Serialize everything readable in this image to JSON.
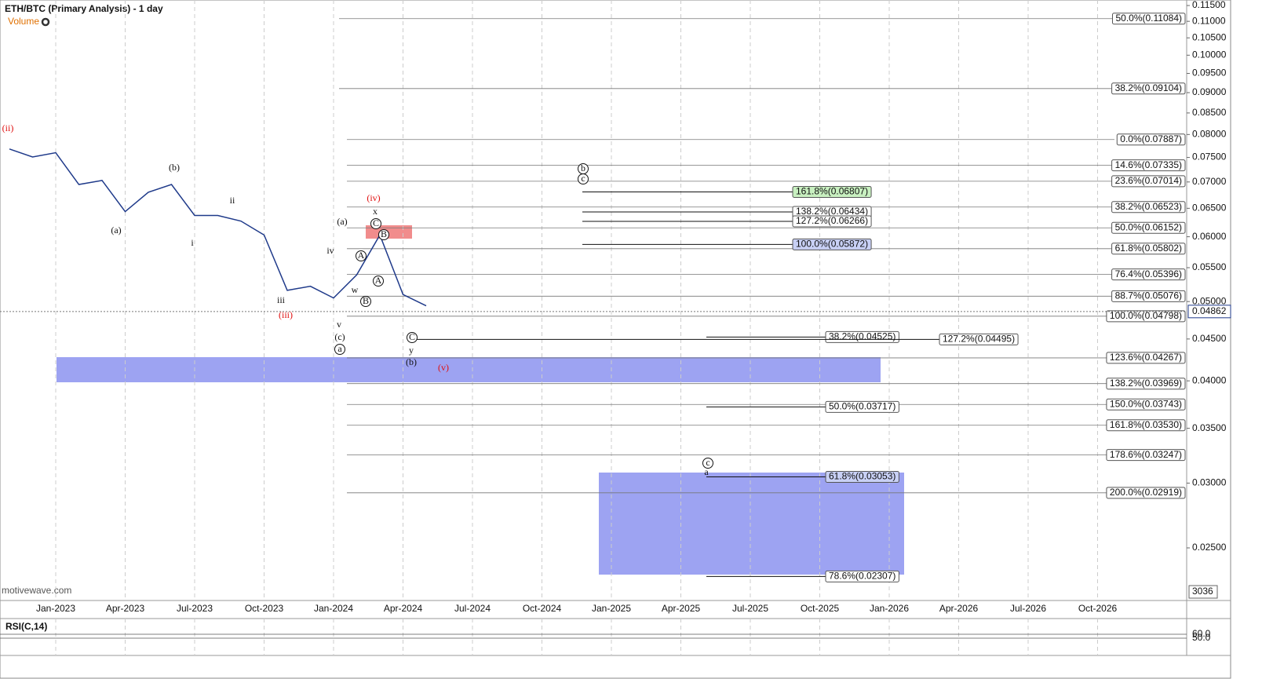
{
  "chart_data": {
    "type": "line",
    "title": "ETH/BTC (Primary Analysis) - 1 day",
    "indicator": "Volume",
    "watermark": "motivewave.com",
    "log_scale": true,
    "grid": true,
    "ylim": [
      0.02156,
      0.1168
    ],
    "yticks": [
      {
        "value": 0.115,
        "label": "0.11500"
      },
      {
        "value": 0.11,
        "label": "0.11000"
      },
      {
        "value": 0.105,
        "label": "0.10500"
      },
      {
        "value": 0.1,
        "label": "0.10000"
      },
      {
        "value": 0.095,
        "label": "0.09500"
      },
      {
        "value": 0.09,
        "label": "0.09000"
      },
      {
        "value": 0.085,
        "label": "0.08500"
      },
      {
        "value": 0.08,
        "label": "0.08000"
      },
      {
        "value": 0.075,
        "label": "0.07500"
      },
      {
        "value": 0.07,
        "label": "0.07000"
      },
      {
        "value": 0.065,
        "label": "0.06500"
      },
      {
        "value": 0.06,
        "label": "0.06000"
      },
      {
        "value": 0.055,
        "label": "0.05500"
      },
      {
        "value": 0.05,
        "label": "0.05000"
      },
      {
        "value": 0.045,
        "label": "0.04500"
      },
      {
        "value": 0.04,
        "label": "0.04000"
      },
      {
        "value": 0.035,
        "label": "0.03500"
      },
      {
        "value": 0.03,
        "label": "0.03000"
      },
      {
        "value": 0.025,
        "label": "0.02500"
      }
    ],
    "x_labels": [
      "Jan-2023",
      "Apr-2023",
      "Jul-2023",
      "Oct-2023",
      "Jan-2024",
      "Apr-2024",
      "Jul-2024",
      "Oct-2024",
      "Jan-2025",
      "Apr-2025",
      "Jul-2025",
      "Oct-2025",
      "Jan-2026",
      "Apr-2026",
      "Jul-2026",
      "Oct-2026"
    ],
    "x": [
      "2022-11",
      "2022-12",
      "2023-01",
      "2023-02",
      "2023-03",
      "2023-04",
      "2023-05",
      "2023-06",
      "2023-07",
      "2023-08",
      "2023-09",
      "2023-10",
      "2023-11",
      "2023-12",
      "2024-01",
      "2024-02",
      "2024-03",
      "2024-04",
      "2024-05"
    ],
    "series": [
      {
        "name": "ETH/BTC",
        "color": "#1f3a8a",
        "values": [
          0.0768,
          0.0751,
          0.076,
          0.0695,
          0.0703,
          0.0644,
          0.068,
          0.0695,
          0.0637,
          0.0637,
          0.0627,
          0.0603,
          0.0516,
          0.0522,
          0.0505,
          0.0539,
          0.0603,
          0.051,
          0.0494
        ]
      }
    ],
    "last_price": {
      "value": 0.04862,
      "label": "0.04862"
    },
    "volume_last": "3036",
    "fib_main": [
      {
        "label": "50.0%(0.11084)",
        "price": 0.11084
      },
      {
        "label": "38.2%(0.09104)",
        "price": 0.09104
      },
      {
        "label": "0.0%(0.07887)",
        "price": 0.07887
      },
      {
        "label": "14.6%(0.07335)",
        "price": 0.07335
      },
      {
        "label": "23.6%(0.07014)",
        "price": 0.07014
      },
      {
        "label": "38.2%(0.06523)",
        "price": 0.06523
      },
      {
        "label": "50.0%(0.06152)",
        "price": 0.06152
      },
      {
        "label": "61.8%(0.05802)",
        "price": 0.05802
      },
      {
        "label": "76.4%(0.05396)",
        "price": 0.05396
      },
      {
        "label": "88.7%(0.05076)",
        "price": 0.05076
      },
      {
        "label": "100.0%(0.04798)",
        "price": 0.04798
      },
      {
        "label": "123.6%(0.04267)",
        "price": 0.04267
      },
      {
        "label": "138.2%(0.03969)",
        "price": 0.03969
      },
      {
        "label": "150.0%(0.03743)",
        "price": 0.03743
      },
      {
        "label": "161.8%(0.03530)",
        "price": 0.0353
      },
      {
        "label": "178.6%(0.03247)",
        "price": 0.03247
      },
      {
        "label": "200.0%(0.02919)",
        "price": 0.02919
      }
    ],
    "fib_mid": [
      {
        "label": "161.8%(0.06807)",
        "price": 0.06807,
        "color": "#c8f0c0"
      },
      {
        "label": "138.2%(0.06434)",
        "price": 0.06434,
        "color": "#ffffff"
      },
      {
        "label": "127.2%(0.06266)",
        "price": 0.06266,
        "color": "#ffffff"
      },
      {
        "label": "100.0%(0.05872)",
        "price": 0.05872,
        "color": "#c8d0f5"
      }
    ],
    "fib_low": [
      {
        "label": "38.2%(0.04525)",
        "price": 0.04525,
        "color": "#ffffff"
      },
      {
        "label": "127.2%(0.04495)",
        "price": 0.04495,
        "color": "#ffffff"
      },
      {
        "label": "50.0%(0.03717)",
        "price": 0.03717,
        "color": "#ffffff"
      },
      {
        "label": "61.8%(0.03053)",
        "price": 0.03053,
        "color": "#c8d0f5"
      },
      {
        "label": "78.6%(0.02307)",
        "price": 0.02307,
        "color": "#ffffff"
      }
    ],
    "waves": [
      "(ii)",
      "(b)",
      "(a)",
      "i",
      "ii",
      "iii",
      "(iii)",
      "iv",
      "v",
      "(c)",
      "a",
      "(a)",
      "(iv)",
      "x",
      "C",
      "B",
      "A",
      "w",
      "A",
      "B",
      "C",
      "y",
      "(b)",
      "(v)",
      "b",
      "c",
      "c",
      "a"
    ],
    "rsi": {
      "title": "RSI(C,14)",
      "ticks": [
        {
          "value": 60,
          "label": "60.0"
        },
        {
          "value": 50,
          "label": "50.0"
        }
      ]
    }
  }
}
